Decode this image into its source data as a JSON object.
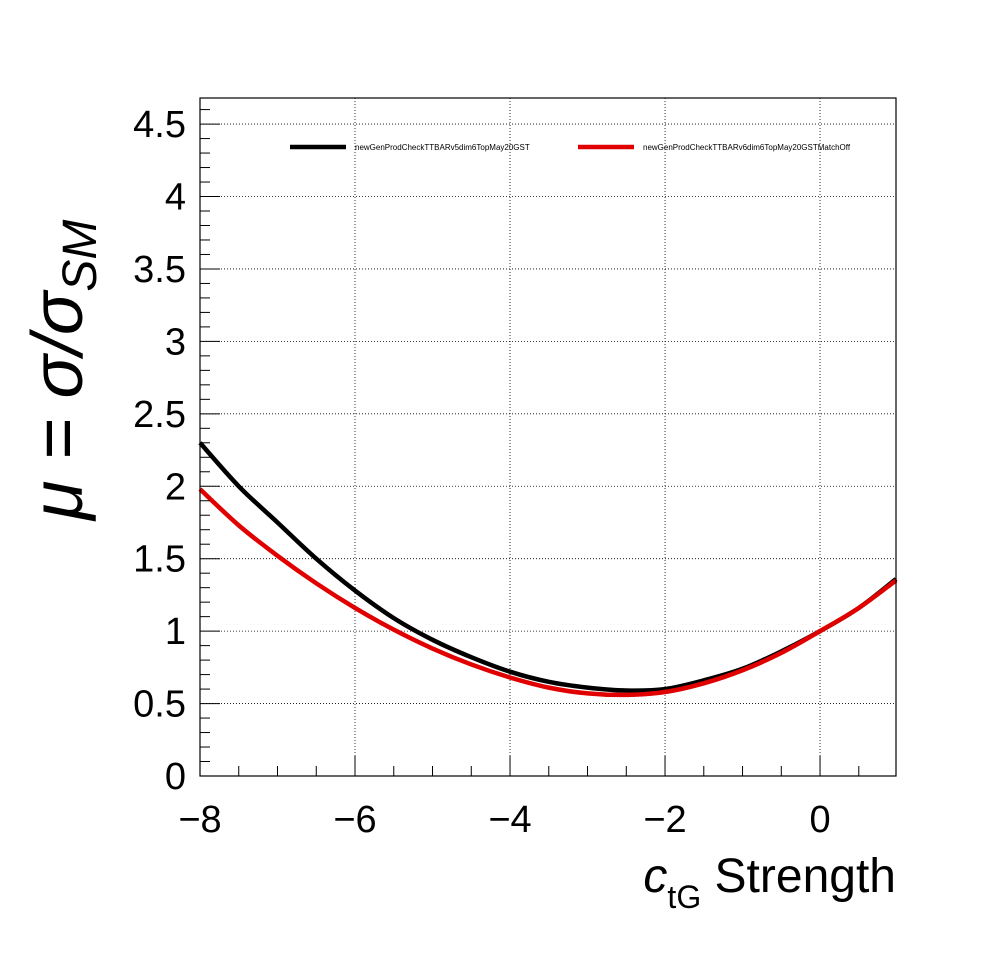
{
  "chart_data": {
    "type": "line",
    "title": "",
    "xlabel_main": "c",
    "xlabel_sub": "tG",
    "xlabel_rest": " Strength",
    "ylabel_main": "μ = σ/σ",
    "ylabel_sub": "SM",
    "xlim": [
      -8,
      0.98
    ],
    "ylim": [
      0,
      4.68
    ],
    "grid": true,
    "legend_position": "top",
    "x_tick_values": [
      -8,
      -6,
      -4,
      -2,
      0
    ],
    "x_tick_labels": [
      "−8",
      "−6",
      "−4",
      "−2",
      "0"
    ],
    "y_tick_values": [
      0,
      0.5,
      1,
      1.5,
      2,
      2.5,
      3,
      3.5,
      4,
      4.5
    ],
    "y_tick_labels": [
      "0",
      "0.5",
      "1",
      "1.5",
      "2",
      "2.5",
      "3",
      "3.5",
      "4",
      "4.5"
    ],
    "series": [
      {
        "name": "newGenProdCheckTTBARv5dim6TopMay20GST",
        "color": "#000000",
        "x": [
          -8,
          -7.5,
          -7,
          -6.5,
          -6,
          -5.5,
          -5,
          -4.5,
          -4,
          -3.5,
          -3,
          -2.5,
          -2,
          -1.5,
          -1,
          -0.5,
          0,
          0.5,
          0.98
        ],
        "y": [
          2.3,
          2.0,
          1.75,
          1.5,
          1.28,
          1.09,
          0.94,
          0.82,
          0.72,
          0.65,
          0.61,
          0.59,
          0.6,
          0.66,
          0.74,
          0.86,
          1.0,
          1.16,
          1.36
        ]
      },
      {
        "name": "newGenProdCheckTTBARv6dim6TopMay20GSTMatchOff",
        "color": "#e00000",
        "x": [
          -8,
          -7.5,
          -7,
          -6.5,
          -6,
          -5.5,
          -5,
          -4.5,
          -4,
          -3.5,
          -3,
          -2.5,
          -2,
          -1.5,
          -1,
          -0.5,
          0,
          0.5,
          0.98
        ],
        "y": [
          1.98,
          1.73,
          1.52,
          1.33,
          1.16,
          1.01,
          0.88,
          0.77,
          0.68,
          0.61,
          0.57,
          0.56,
          0.58,
          0.64,
          0.73,
          0.85,
          1.0,
          1.16,
          1.35
        ]
      }
    ]
  }
}
